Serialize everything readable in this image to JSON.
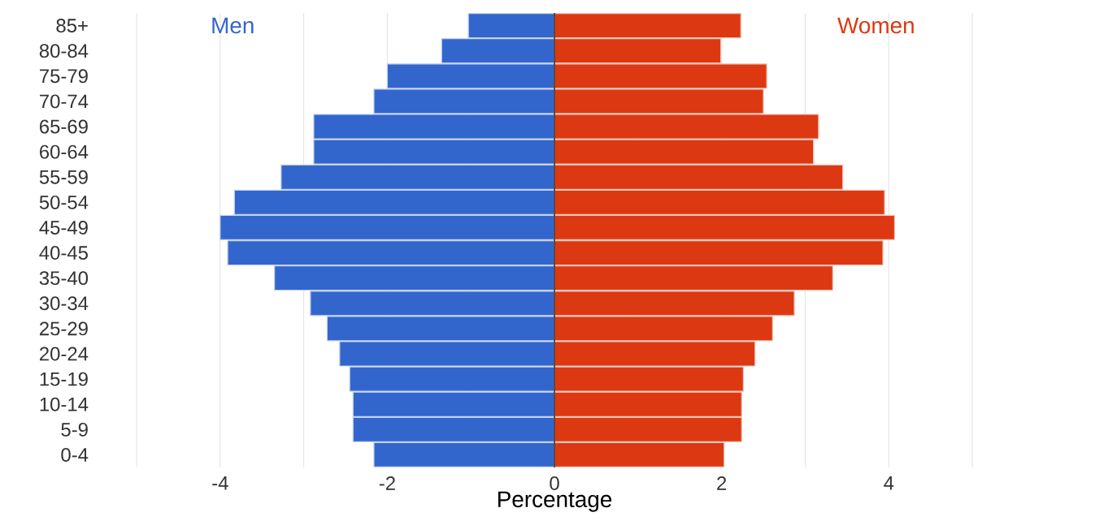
{
  "chart_data": {
    "type": "bar",
    "orientation": "horizontal",
    "stacked": true,
    "xlabel": "Percentage",
    "categories": [
      "85+",
      "80-84",
      "75-79",
      "70-74",
      "65-69",
      "60-64",
      "55-59",
      "50-54",
      "45-49",
      "40-45",
      "35-40",
      "30-34",
      "25-29",
      "20-24",
      "15-19",
      "10-14",
      "5-9",
      "0-4"
    ],
    "series": [
      {
        "name": "Men",
        "color": "#3366cc",
        "values": [
          -1.03,
          -1.35,
          -2.0,
          -2.16,
          -2.88,
          -2.88,
          -3.27,
          -3.83,
          -4.0,
          -3.91,
          -3.35,
          -2.92,
          -2.72,
          -2.57,
          -2.45,
          -2.41,
          -2.41,
          -2.16
        ]
      },
      {
        "name": "Women",
        "color": "#dc3912",
        "values": [
          2.23,
          1.99,
          2.54,
          2.5,
          3.16,
          3.1,
          3.45,
          3.95,
          4.07,
          3.93,
          3.33,
          2.87,
          2.61,
          2.4,
          2.26,
          2.24,
          2.24,
          2.03
        ]
      }
    ],
    "xlim": [
      -5,
      5
    ],
    "xticks": [
      {
        "value": -5,
        "label": null
      },
      -4,
      {
        "value": -3,
        "label": null
      },
      -2,
      {
        "value": -1,
        "label": null
      },
      0,
      {
        "value": 1,
        "label": null
      },
      2,
      {
        "value": 3,
        "label": null
      },
      4,
      {
        "value": 5,
        "label": null
      }
    ],
    "grid": "x",
    "legend": false
  }
}
